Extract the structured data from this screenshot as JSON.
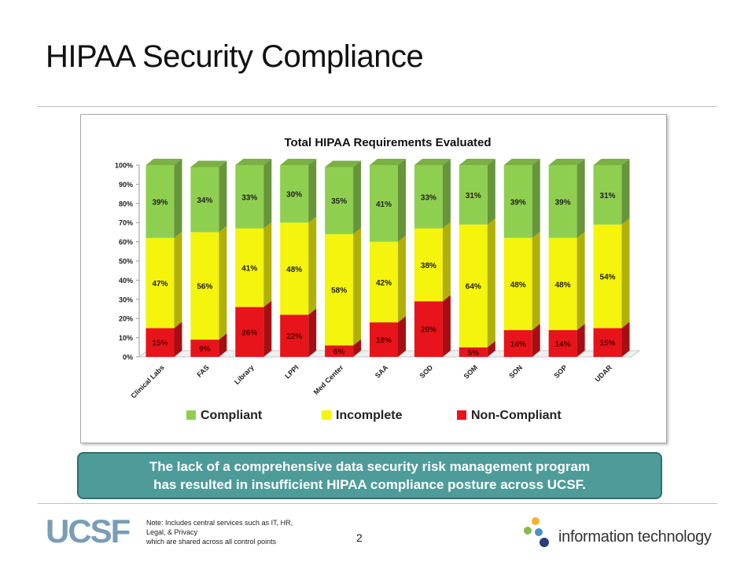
{
  "slide": {
    "title": "HIPAA Security Compliance",
    "callout_line1": "The lack of a comprehensive data security risk management program",
    "callout_line2": "has resulted in insufficient HIPAA compliance posture across UCSF.",
    "note_line1": "Note:  Includes central services such as IT, HR,",
    "note_line2": "Legal, & Privacy",
    "note_line3": "which are shared across all control points",
    "page_number": "2",
    "logo_left": "UCSF",
    "logo_right": "information technology"
  },
  "chart_data": {
    "type": "bar",
    "stacked": true,
    "title": "Total HIPAA Requirements Evaluated",
    "categories": [
      "Clinical Labs",
      "FAS",
      "Library",
      "LPPI",
      "Med Center",
      "SAA",
      "SOD",
      "SOM",
      "SON",
      "SOP",
      "UDAR"
    ],
    "series": [
      {
        "name": "Non-Compliant",
        "color": "#e8141b",
        "values": [
          15,
          9,
          26,
          22,
          6,
          18,
          29,
          5,
          14,
          14,
          15
        ]
      },
      {
        "name": "Incomplete",
        "color": "#f4f40c",
        "values": [
          47,
          56,
          41,
          48,
          58,
          42,
          38,
          64,
          48,
          48,
          54
        ]
      },
      {
        "name": "Compliant",
        "color": "#8fcf50",
        "values": [
          39,
          34,
          33,
          30,
          35,
          41,
          33,
          31,
          39,
          39,
          31
        ]
      }
    ],
    "y_ticks": [
      "0%",
      "10%",
      "20%",
      "30%",
      "40%",
      "50%",
      "60%",
      "70%",
      "80%",
      "90%",
      "100%"
    ],
    "ylim": [
      0,
      100
    ],
    "legend": [
      "Compliant",
      "Incomplete",
      "Non-Compliant"
    ],
    "legend_placement": "bottom",
    "grid": false
  }
}
